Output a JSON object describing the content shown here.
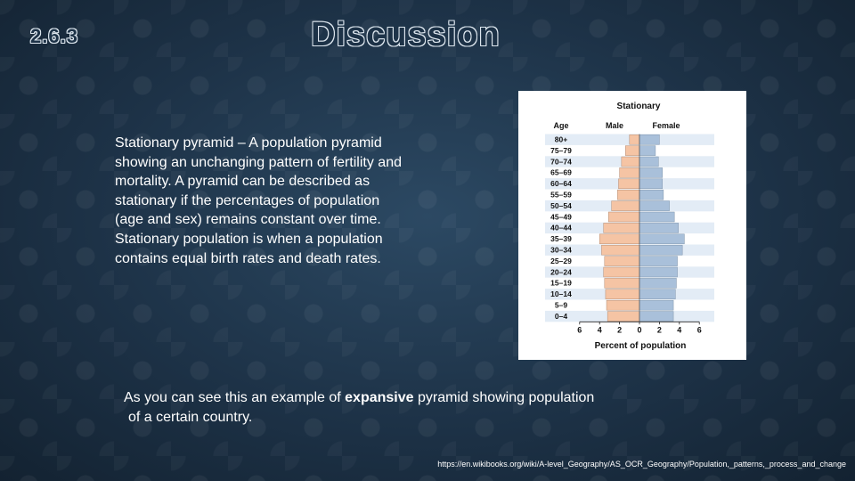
{
  "slide": {
    "number": "2.6.3",
    "title": "Discussion",
    "definition": "Stationary pyramid – A population pyramid showing an unchanging pattern of fertility and mortality. A pyramid can be described as stationary if the percentages of population (age and sex) remains constant over time. Stationary population is when a population contains equal birth rates and death rates.",
    "caption": {
      "part1": "As you can see this an example of ",
      "emphasis": "expansive",
      "part2": " pyramid showing population",
      "line2": "of  a certain  country."
    },
    "source_url": "https://en.wikibooks.org/wiki/A-level_Geography/AS_OCR_Geography/Population,_patterns,_process_and_change"
  },
  "chart_data": {
    "type": "bar",
    "orientation": "horizontal-population-pyramid",
    "title": "Stationary",
    "age_header": "Age",
    "series_labels": [
      "Male",
      "Female"
    ],
    "xlabel": "Percent of population",
    "x_ticks": [
      "6",
      "4",
      "2",
      "0",
      "2",
      "4",
      "6"
    ],
    "xlim": [
      -6,
      6
    ],
    "categories": [
      "80+",
      "75–79",
      "70–74",
      "65–69",
      "60–64",
      "55–59",
      "50–54",
      "45–49",
      "40–44",
      "35–39",
      "30–34",
      "25–29",
      "20–24",
      "15–19",
      "10–14",
      "5–9",
      "0–4"
    ],
    "series": [
      {
        "name": "Male",
        "values": [
          1.0,
          1.4,
          1.8,
          2.0,
          2.1,
          2.2,
          2.8,
          3.1,
          3.6,
          4.0,
          3.8,
          3.5,
          3.6,
          3.5,
          3.4,
          3.3,
          3.2
        ]
      },
      {
        "name": "Female",
        "values": [
          2.0,
          1.6,
          1.9,
          2.3,
          2.3,
          2.4,
          3.0,
          3.5,
          3.9,
          4.5,
          4.3,
          3.8,
          3.8,
          3.7,
          3.6,
          3.4,
          3.4
        ]
      }
    ],
    "colors": {
      "male": "#f5c4a4",
      "female": "#a9c0da",
      "band": "#e3ecf6"
    }
  }
}
